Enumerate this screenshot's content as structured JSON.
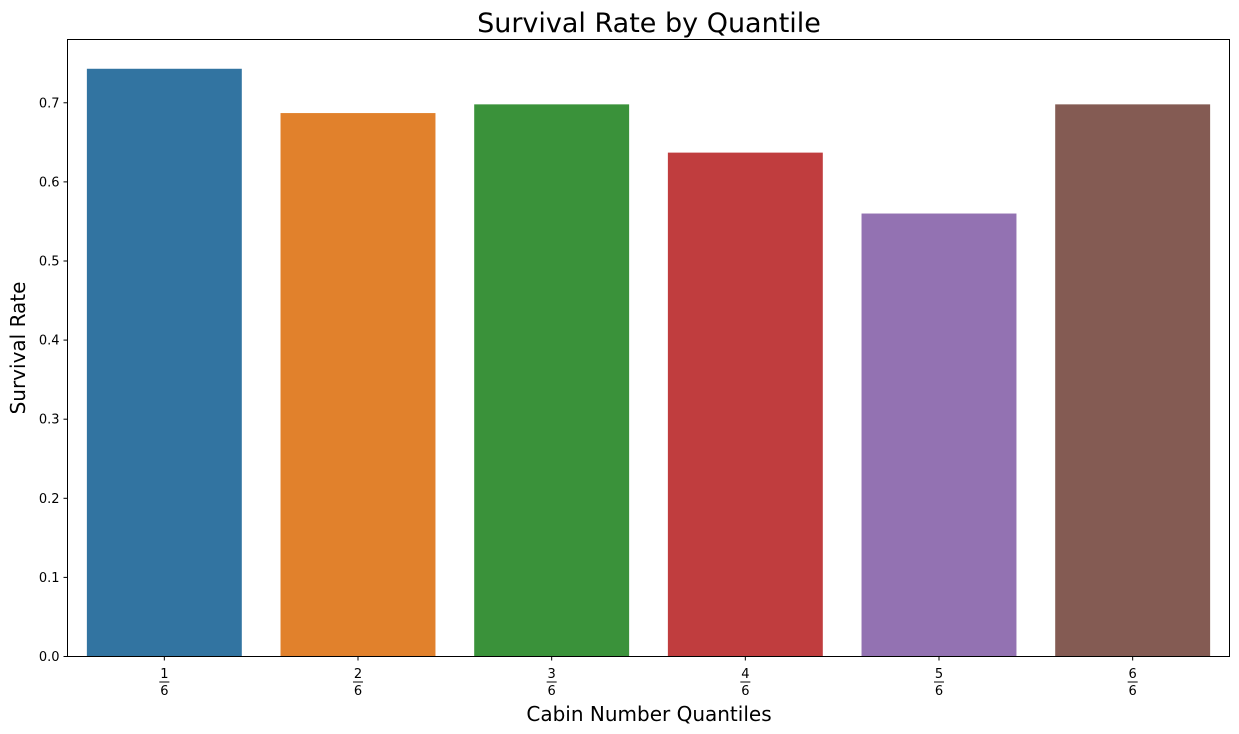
{
  "chart_data": {
    "type": "bar",
    "title": "Survival Rate by Quantile",
    "xlabel": "Cabin Number Quantiles",
    "ylabel": "Survival Rate",
    "categories": [
      {
        "numerator": "1",
        "denominator": "6"
      },
      {
        "numerator": "2",
        "denominator": "6"
      },
      {
        "numerator": "3",
        "denominator": "6"
      },
      {
        "numerator": "4",
        "denominator": "6"
      },
      {
        "numerator": "5",
        "denominator": "6"
      },
      {
        "numerator": "6",
        "denominator": "6"
      }
    ],
    "values": [
      0.743,
      0.687,
      0.698,
      0.637,
      0.56,
      0.698
    ],
    "colors": [
      "#3274a1",
      "#e1812c",
      "#3a923a",
      "#c03d3e",
      "#9372b2",
      "#845b53"
    ],
    "ylim": [
      0,
      0.78
    ],
    "yticks": [
      0.0,
      0.1,
      0.2,
      0.3,
      0.4,
      0.5,
      0.6,
      0.7
    ],
    "ytick_labels": [
      "0.0",
      "0.1",
      "0.2",
      "0.3",
      "0.4",
      "0.5",
      "0.6",
      "0.7"
    ],
    "grid": false,
    "legend": "none"
  }
}
